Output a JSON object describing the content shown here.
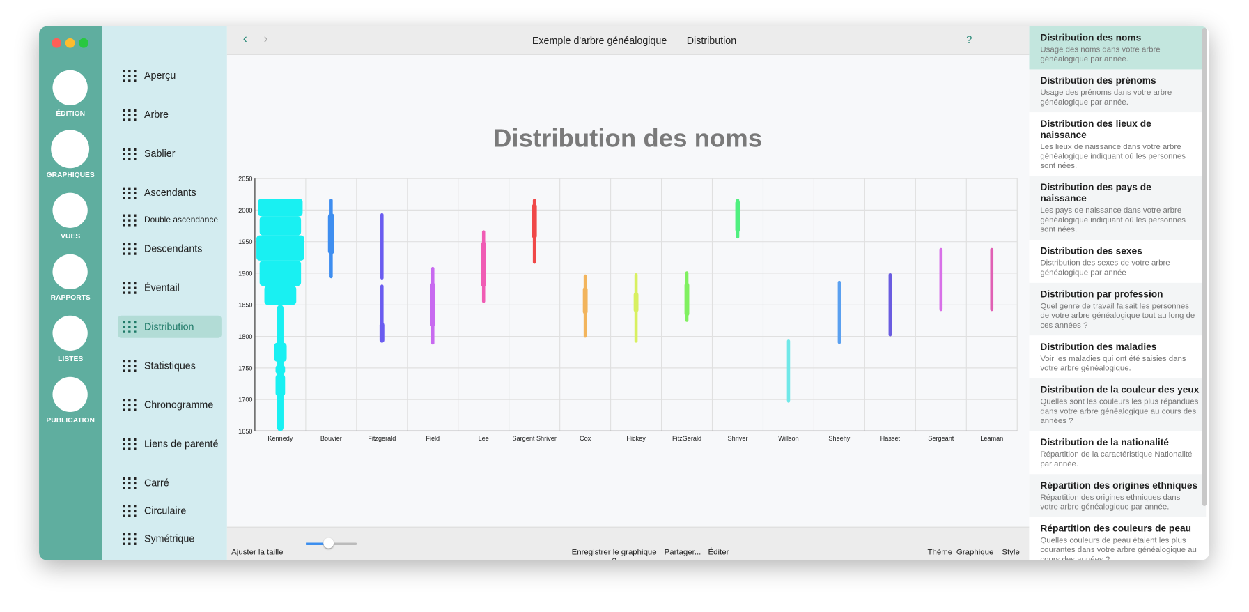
{
  "rail": [
    "ÉDITION",
    "GRAPHIQUES",
    "VUES",
    "RAPPORTS",
    "LISTES",
    "PUBLICATION"
  ],
  "nav": [
    "Aperçu",
    "Arbre",
    "Sablier",
    "Ascendants",
    "Double ascendance",
    "Descendants",
    "Éventail",
    "Distribution",
    "Statistiques",
    "Chronogramme",
    "Liens de parenté",
    "Carré",
    "Circulaire",
    "Symétrique"
  ],
  "toolbar": {
    "document": "Exemple d'arbre généalogique",
    "view": "Distribution"
  },
  "chart": {
    "title": "Distribution des noms",
    "ylim": [
      1650,
      2050
    ],
    "yticks": [
      1650,
      1700,
      1750,
      1800,
      1850,
      1900,
      1950,
      2000,
      2050
    ],
    "categories": [
      "Kennedy",
      "Bouvier",
      "Fitzgerald",
      "Field",
      "Lee",
      "Sargent Shriver",
      "Cox",
      "Hickey",
      "FitzGerald",
      "Shriver",
      "Willson",
      "Sheehy",
      "Hasset",
      "Sergeant",
      "Leaman"
    ],
    "colors": [
      "#19f0f2",
      "#3e8ef0",
      "#6a5cf0",
      "#c86af0",
      "#f05cb4",
      "#f04848",
      "#f2b45c",
      "#d8f060",
      "#80f060",
      "#50f080",
      "#70e8e8",
      "#5aa0f0",
      "#6a5ce0",
      "#d870e8",
      "#e060b4"
    ],
    "segments": [
      [
        {
          "from": 1650,
          "to": 1850,
          "weight": 2
        },
        {
          "from": 1760,
          "to": 1790,
          "weight": 4
        },
        {
          "from": 1740,
          "to": 1755,
          "weight": 3
        },
        {
          "from": 1705,
          "to": 1740,
          "weight": 3
        },
        {
          "from": 1850,
          "to": 1880,
          "weight": 10
        },
        {
          "from": 1880,
          "to": 1920,
          "weight": 13
        },
        {
          "from": 1920,
          "to": 1960,
          "weight": 15
        },
        {
          "from": 1960,
          "to": 1990,
          "weight": 13
        },
        {
          "from": 1990,
          "to": 2018,
          "weight": 14
        }
      ],
      [
        {
          "from": 1892,
          "to": 2018,
          "weight": 1
        },
        {
          "from": 1930,
          "to": 1995,
          "weight": 2
        }
      ],
      [
        {
          "from": 1890,
          "to": 1995,
          "weight": 1
        },
        {
          "from": 1790,
          "to": 1882,
          "weight": 1
        },
        {
          "from": 1790,
          "to": 1822,
          "weight": 1.5
        }
      ],
      [
        {
          "from": 1787,
          "to": 1910,
          "weight": 1
        },
        {
          "from": 1815,
          "to": 1885,
          "weight": 1.5
        }
      ],
      [
        {
          "from": 1853,
          "to": 1968,
          "weight": 1
        },
        {
          "from": 1878,
          "to": 1950,
          "weight": 1.5
        }
      ],
      [
        {
          "from": 1915,
          "to": 2018,
          "weight": 1
        },
        {
          "from": 1955,
          "to": 2010,
          "weight": 1.5
        }
      ],
      [
        {
          "from": 1798,
          "to": 1898,
          "weight": 1
        },
        {
          "from": 1835,
          "to": 1878,
          "weight": 1.5
        }
      ],
      [
        {
          "from": 1790,
          "to": 1900,
          "weight": 1
        },
        {
          "from": 1838,
          "to": 1870,
          "weight": 1.5
        }
      ],
      [
        {
          "from": 1823,
          "to": 1903,
          "weight": 1
        },
        {
          "from": 1832,
          "to": 1885,
          "weight": 1.5
        }
      ],
      [
        {
          "from": 1955,
          "to": 2018,
          "weight": 1
        },
        {
          "from": 1965,
          "to": 2015,
          "weight": 1.5
        }
      ],
      [
        {
          "from": 1695,
          "to": 1795,
          "weight": 1
        }
      ],
      [
        {
          "from": 1788,
          "to": 1888,
          "weight": 1
        }
      ],
      [
        {
          "from": 1800,
          "to": 1900,
          "weight": 1
        }
      ],
      [
        {
          "from": 1840,
          "to": 1940,
          "weight": 1
        }
      ],
      [
        {
          "from": 1840,
          "to": 1940,
          "weight": 1
        }
      ]
    ]
  },
  "bottom_bar": {
    "fit": "Ajuster la taille",
    "save": "Enregistrer le graphique ?",
    "share": "Partager...",
    "edit": "Éditer",
    "theme": "Thème",
    "chart": "Graphique",
    "style": "Style"
  },
  "panel": [
    {
      "title": "Distribution des noms",
      "description": "Usage des noms dans votre arbre généalogique par année."
    },
    {
      "title": "Distribution des prénoms",
      "description": "Usage des prénoms dans votre arbre généalogique par année."
    },
    {
      "title": "Distribution des lieux de naissance",
      "description": "Les lieux de naissance dans votre arbre généalogique indiquant où les personnes sont nées."
    },
    {
      "title": "Distribution des pays de naissance",
      "description": "Les pays de naissance dans votre arbre généalogique indiquant où les personnes sont nées."
    },
    {
      "title": "Distribution des sexes",
      "description": "Distribution des sexes de votre arbre généalogique par année"
    },
    {
      "title": "Distribution par profession",
      "description": "Quel genre de travail faisait les personnes de votre arbre généalogique tout au long de ces années ?"
    },
    {
      "title": "Distribution des maladies",
      "description": "Voir les maladies qui ont été saisies dans votre arbre généalogique."
    },
    {
      "title": "Distribution de la couleur des yeux",
      "description": "Quelles sont les couleurs les plus répandues dans votre arbre généalogique au cours des années ?"
    },
    {
      "title": "Distribution de la nationalité",
      "description": "Répartition de la caractéristique Nationalité par année."
    },
    {
      "title": "Répartition des origines ethniques",
      "description": "Répartition des origines ethniques dans votre arbre généalogique par année."
    },
    {
      "title": "Répartition des couleurs de peau",
      "description": "Quelles couleurs de peau étaient les plus courantes dans votre arbre généalogique au cours des années ?"
    }
  ]
}
